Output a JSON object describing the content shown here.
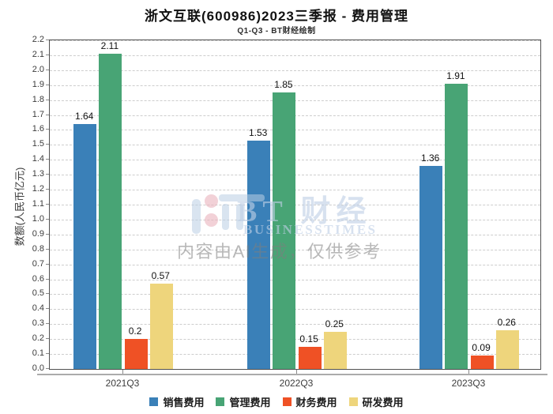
{
  "title": "浙文互联(600986)2023三季报 - 费用管理",
  "subtitle": "Q1-Q3 - BT财经绘制",
  "watermark": {
    "brand_cn": "BT 财经",
    "brand_en": "BUSINESSTIMES",
    "ai_note": "内容由AI生成，仅供参考"
  },
  "chart_data": {
    "type": "bar",
    "categories": [
      "2021Q3",
      "2022Q3",
      "2023Q3"
    ],
    "series": [
      {
        "name": "销售费用",
        "color": "#3a80b8",
        "values": [
          1.64,
          1.53,
          1.36
        ]
      },
      {
        "name": "管理费用",
        "color": "#48a475",
        "values": [
          2.11,
          1.85,
          1.91
        ]
      },
      {
        "name": "财务费用",
        "color": "#ef5125",
        "values": [
          0.2,
          0.15,
          0.09
        ]
      },
      {
        "name": "研发费用",
        "color": "#eed57c",
        "values": [
          0.57,
          0.25,
          0.26
        ]
      }
    ],
    "title": "浙文互联(600986)2023三季报 - 费用管理",
    "xlabel": "",
    "ylabel": "数额(人民币亿元)",
    "ylim": [
      0.0,
      2.2
    ],
    "ytick_step": 0.1,
    "grid": true,
    "grid_style": "dashed",
    "legend_position": "bottom",
    "bar_value_labels": true
  }
}
